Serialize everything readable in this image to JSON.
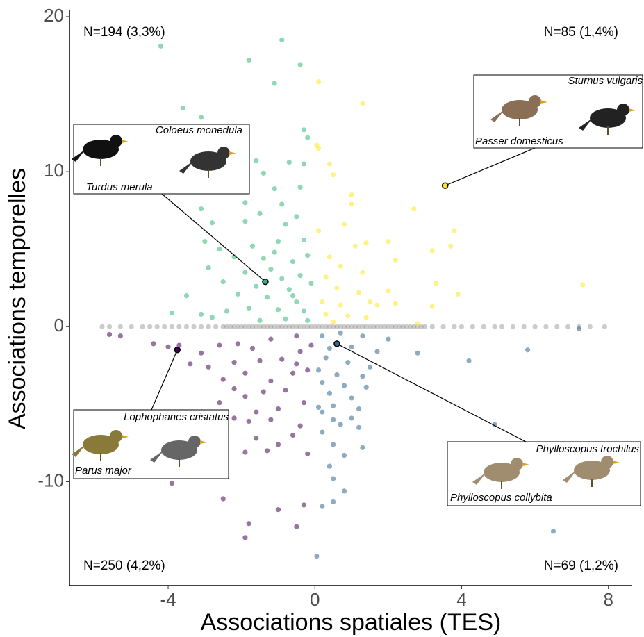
{
  "chart_data": {
    "type": "scatter",
    "xlabel": "Associations spatiales (TES)",
    "ylabel": "Associations temporelles",
    "xlim": [
      -6.69,
      8.65
    ],
    "ylim": [
      -16.7,
      20.4
    ],
    "xticks": [
      -4,
      0,
      4,
      8
    ],
    "yticks": [
      -10,
      0,
      10,
      20
    ],
    "annotations": [
      "N=194 (3,3%)",
      "N=85 (1,4%)",
      "N=250 (4,2%)",
      "N=69 (1,2%)"
    ],
    "series": [
      {
        "color": "#808080",
        "x": [
          -5.8,
          -5.6,
          -5.3,
          -5.0,
          -4.7,
          -4.5,
          -4.3,
          -4.1,
          -3.9,
          -3.7,
          -3.5,
          -3.3,
          -3.1,
          -2.9,
          -2.7,
          -2.5,
          -2.4,
          -2.3,
          -2.2,
          -2.1,
          -2.0,
          -1.9,
          -1.8,
          -1.7,
          -1.6,
          -1.5,
          -1.4,
          -1.3,
          -1.2,
          -1.1,
          -1.0,
          -0.9,
          -0.8,
          -0.7,
          -0.6,
          -0.5,
          -0.4,
          -0.3,
          -0.2,
          -0.1,
          0,
          0.1,
          0.2,
          0.3,
          0.4,
          0.5,
          0.6,
          0.7,
          0.8,
          0.9,
          1.0,
          1.1,
          1.2,
          1.3,
          1.4,
          1.5,
          1.6,
          1.7,
          1.8,
          1.9,
          2.0,
          2.1,
          2.2,
          2.3,
          2.4,
          2.5,
          2.6,
          2.7,
          2.8,
          2.9,
          3.0,
          3.2,
          3.5,
          3.8,
          4.0,
          4.3,
          4.6,
          4.9,
          5.1,
          5.4,
          5.7,
          6.0,
          6.3,
          6.6,
          6.9,
          7.2,
          7.5,
          7.9
        ],
        "values": [
          0,
          0,
          0,
          0,
          0,
          0,
          0,
          0,
          0,
          0,
          0,
          0,
          0,
          0,
          0,
          0,
          0,
          0,
          0,
          0,
          0,
          0,
          0,
          0,
          0,
          0,
          0,
          0,
          0,
          0,
          0,
          0,
          0,
          0,
          0,
          0,
          0,
          0,
          0,
          0,
          0,
          0,
          0,
          0,
          0,
          0,
          0,
          0,
          0,
          0,
          0,
          0,
          0,
          0,
          0,
          0,
          0,
          0,
          0,
          0,
          0,
          0,
          0,
          0,
          0,
          0,
          0,
          0,
          0,
          0,
          0,
          0,
          0,
          0,
          0,
          0,
          0,
          0,
          0,
          0,
          0,
          0,
          0,
          0,
          0,
          0,
          0,
          0
        ]
      },
      {
        "color": "#35b779",
        "x": [
          -4.2,
          -0.9,
          -1.8,
          -0.4,
          -1.1,
          -3.6,
          -3.1,
          -0.3,
          -0.2,
          -2.4,
          -1.6,
          -0.7,
          -0.3,
          -1.4,
          -2.2,
          -2.0,
          -1.1,
          -0.4,
          -1.9,
          -0.9,
          -3.1,
          -1.5,
          -0.5,
          -2.8,
          -1.9,
          -0.8,
          -3.0,
          -2.6,
          -1.7,
          -1.0,
          -0.3,
          -2.2,
          -1.4,
          -0.6,
          -0.2,
          -2.9,
          -1.9,
          -1.2,
          -0.9,
          -0.4,
          -2.5,
          -1.6,
          -0.7,
          -0.1,
          -3.5,
          -2.1,
          -1.3,
          -0.5,
          -3.9,
          -3.1,
          -2.4,
          -1.8,
          -1.0,
          -0.3,
          -0.8,
          -1.5,
          -0.2,
          -2.8,
          -0.6,
          -1.1
        ],
        "values": [
          18.1,
          18.5,
          17.2,
          16.9,
          15.7,
          14.1,
          13.5,
          12.7,
          12.2,
          11.6,
          10.7,
          10.6,
          10.5,
          9.9,
          9.2,
          9.4,
          8.9,
          9.0,
          8.0,
          7.9,
          7.6,
          7.3,
          7.1,
          6.7,
          6.8,
          6.6,
          5.5,
          5.0,
          5.2,
          5.5,
          5.6,
          4.5,
          4.4,
          4.2,
          4.6,
          3.8,
          3.5,
          3.7,
          3.1,
          3.3,
          2.9,
          2.6,
          2.4,
          2.8,
          2.0,
          2.1,
          1.9,
          1.6,
          0.9,
          0.8,
          1.0,
          1.2,
          1.1,
          1.0,
          0.5,
          0.4,
          0.4,
          0.6,
          2.0,
          4.8
        ]
      },
      {
        "color": "#fde725",
        "x": [
          0.1,
          1.3,
          0.05,
          0.1,
          0.4,
          0.5,
          1.0,
          1.0,
          2.7,
          0.8,
          3.8,
          0.1,
          1.4,
          2.0,
          3.7,
          1.1,
          3.2,
          0.4,
          2.2,
          0.7,
          1.3,
          0.3,
          3.3,
          0.6,
          1.2,
          2.0,
          3.9,
          7.3,
          0.2,
          0.7,
          1.5,
          2.2,
          1.7,
          3.2,
          0.3,
          0.9,
          1.4,
          0.5,
          2.8
        ],
        "values": [
          15.8,
          14.4,
          11.7,
          11.5,
          10.5,
          9.8,
          8.5,
          7.9,
          7.6,
          6.6,
          6.2,
          6.2,
          5.4,
          5.5,
          5.2,
          5.2,
          4.9,
          4.5,
          4.3,
          3.9,
          3.5,
          3.2,
          2.8,
          2.5,
          2.2,
          2.3,
          2.1,
          2.7,
          1.6,
          1.4,
          1.6,
          1.5,
          1.4,
          1.3,
          0.8,
          0.7,
          0.6,
          0.3,
          0.2
        ]
      },
      {
        "color": "#440154",
        "x": [
          -5.6,
          -5.3,
          -4.4,
          -4.0,
          -3.7,
          -3.1,
          -2.6,
          -2.1,
          -1.7,
          -1.2,
          -0.5,
          -3.4,
          -2.9,
          -2.2,
          -1.5,
          -0.9,
          -0.4,
          -2.5,
          -1.9,
          -1.2,
          -0.6,
          -0.2,
          -2.2,
          -1.4,
          -0.8,
          -2.6,
          -1.9,
          -1.0,
          -0.3,
          -1.6,
          -2.2,
          -1.2,
          -1.8,
          -0.4,
          -1.6,
          -1.0,
          -2.4,
          -0.6,
          -1.3,
          -1.9,
          -0.2,
          -3.5,
          -3.9,
          -2.5,
          -1.0,
          -0.3,
          -1.8,
          -0.5,
          -1.9,
          -0.5,
          -0.1
        ],
        "values": [
          -0.5,
          -0.6,
          -1.1,
          -1.3,
          -1.2,
          -1.7,
          -1.2,
          -1.1,
          -1.4,
          -0.8,
          -0.6,
          -2.4,
          -2.6,
          -2.3,
          -2.2,
          -2.1,
          -1.6,
          -3.4,
          -3.0,
          -3.5,
          -3.0,
          -2.8,
          -4.0,
          -4.2,
          -4.1,
          -4.9,
          -4.5,
          -5.3,
          -4.9,
          -5.5,
          -5.9,
          -6.0,
          -6.1,
          -6.4,
          -7.2,
          -7.6,
          -7.3,
          -7.0,
          -8.0,
          -8.1,
          -8.2,
          -8.5,
          -10.1,
          -11.1,
          -11.8,
          -11.5,
          -12.7,
          -12.9,
          -13.6,
          -2.4,
          -1.2
        ]
      },
      {
        "color": "#31688e",
        "x": [
          0.2,
          0.7,
          1.3,
          2.0,
          0.4,
          1.0,
          1.7,
          0.3,
          0.9,
          1.5,
          0.1,
          0.6,
          1.3,
          2.8,
          5.8,
          4.2,
          0.2,
          0.8,
          1.4,
          0.4,
          1.0,
          0.1,
          0.5,
          1.2,
          0.2,
          0.5,
          1.0,
          0.7,
          1.2,
          0.2,
          4.9,
          0.5,
          1.3,
          0.8,
          0.4,
          0.5,
          0.8,
          0.2,
          0.5,
          6.5,
          0.05,
          7.2
        ],
        "values": [
          -0.6,
          -0.4,
          -0.6,
          -0.8,
          -1.4,
          -1.3,
          -1.6,
          -2.0,
          -2.3,
          -2.6,
          -2.8,
          -3.1,
          -3.2,
          -1.7,
          -1.5,
          -2.2,
          -3.6,
          -3.8,
          -3.9,
          -4.3,
          -4.6,
          -5.2,
          -5.1,
          -5.3,
          -5.5,
          -6.0,
          -5.9,
          -6.3,
          -6.5,
          -6.8,
          -6.3,
          -7.6,
          -7.8,
          -8.3,
          -9.0,
          -9.8,
          -10.6,
          -11.6,
          -11.3,
          -13.2,
          -14.8,
          -0.15
        ]
      }
    ],
    "highlights": [
      {
        "x": -1.35,
        "y": 2.9,
        "color": "#35b779",
        "species": [
          "Coloeus monedula",
          "Turdus merula"
        ]
      },
      {
        "x": 3.55,
        "y": 9.1,
        "color": "#fde725",
        "species": [
          "Sturnus vulgaris",
          "Passer domesticus"
        ]
      },
      {
        "x": -3.75,
        "y": -1.5,
        "color": "#440154",
        "species": [
          "Lophophanes cristatus",
          "Parus major"
        ]
      },
      {
        "x": 0.6,
        "y": -1.1,
        "color": "#31688e",
        "species": [
          "Phylloscopus trochilus",
          "Phylloscopus collybita"
        ]
      }
    ]
  }
}
